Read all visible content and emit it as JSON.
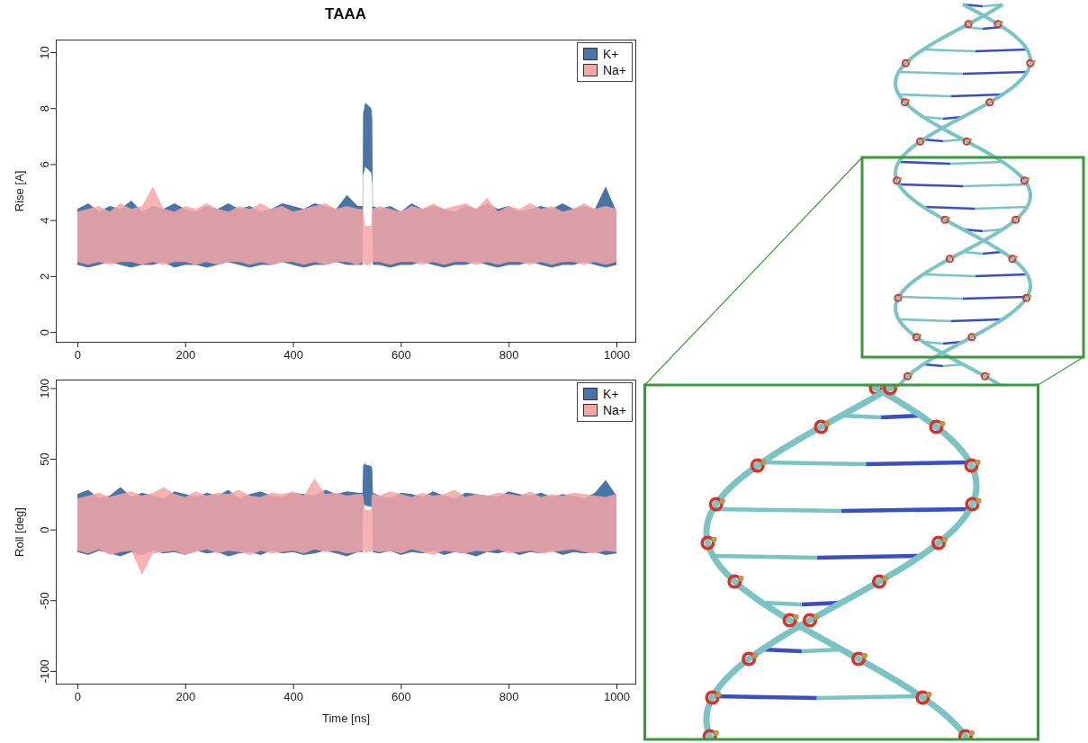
{
  "chart_data": [
    {
      "type": "area",
      "title": "TAAA",
      "ylabel": "Rise [A]",
      "x": [
        0,
        20,
        40,
        60,
        80,
        100,
        120,
        140,
        160,
        180,
        200,
        220,
        240,
        260,
        280,
        300,
        320,
        340,
        360,
        380,
        400,
        420,
        440,
        460,
        480,
        500,
        520,
        529,
        530,
        533,
        534,
        545,
        546,
        547,
        548,
        560,
        580,
        600,
        620,
        640,
        660,
        680,
        700,
        720,
        740,
        760,
        780,
        800,
        820,
        840,
        860,
        880,
        900,
        920,
        940,
        960,
        980,
        1000
      ],
      "series": [
        {
          "name": "K+",
          "color": "#4a73a6",
          "low": [
            2.4,
            2.3,
            2.4,
            2.5,
            2.4,
            2.3,
            2.4,
            2.4,
            2.5,
            2.3,
            2.4,
            2.4,
            2.3,
            2.4,
            2.5,
            2.4,
            2.3,
            2.4,
            2.4,
            2.5,
            2.4,
            2.3,
            2.4,
            2.4,
            2.5,
            2.4,
            2.4,
            2.4,
            5.6,
            5.8,
            5.9,
            5.7,
            5.5,
            5.3,
            2.4,
            2.4,
            2.3,
            2.4,
            2.4,
            2.5,
            2.4,
            2.3,
            2.4,
            2.4,
            2.5,
            2.4,
            2.3,
            2.4,
            2.4,
            2.5,
            2.4,
            2.3,
            2.4,
            2.4,
            2.5,
            2.4,
            2.3,
            2.4
          ],
          "high": [
            4.4,
            4.6,
            4.3,
            4.5,
            4.4,
            4.7,
            4.3,
            4.5,
            4.4,
            4.6,
            4.4,
            4.3,
            4.5,
            4.4,
            4.6,
            4.4,
            4.5,
            4.3,
            4.4,
            4.6,
            4.5,
            4.4,
            4.6,
            4.5,
            4.4,
            4.9,
            4.5,
            4.5,
            7.8,
            8.1,
            8.2,
            8.0,
            7.9,
            7.6,
            4.5,
            4.4,
            4.5,
            4.3,
            4.6,
            4.4,
            4.5,
            4.4,
            4.3,
            4.5,
            4.4,
            4.6,
            4.4,
            4.5,
            4.3,
            4.4,
            4.5,
            4.4,
            4.6,
            4.4,
            4.5,
            4.4,
            5.2,
            4.3
          ]
        },
        {
          "name": "Na+",
          "color": "#f6a6a6",
          "low": [
            2.5,
            2.4,
            2.5,
            2.4,
            2.5,
            2.5,
            2.4,
            2.5,
            2.4,
            2.5,
            2.5,
            2.4,
            2.5,
            2.4,
            2.5,
            2.5,
            2.4,
            2.5,
            2.4,
            2.5,
            2.5,
            2.4,
            2.5,
            2.4,
            2.5,
            2.5,
            2.4,
            2.5,
            2.5,
            2.4,
            2.4,
            2.4,
            2.5,
            2.5,
            2.5,
            2.5,
            2.4,
            2.5,
            2.5,
            2.4,
            2.5,
            2.4,
            2.5,
            2.5,
            2.4,
            2.5,
            2.4,
            2.5,
            2.5,
            2.4,
            2.5,
            2.4,
            2.5,
            2.5,
            2.4,
            2.5,
            2.4,
            2.5
          ],
          "high": [
            4.3,
            4.4,
            4.5,
            4.3,
            4.6,
            4.4,
            4.5,
            5.2,
            4.4,
            4.3,
            4.5,
            4.4,
            4.6,
            4.4,
            4.3,
            4.5,
            4.4,
            4.6,
            4.4,
            4.5,
            4.3,
            4.4,
            4.5,
            4.6,
            4.4,
            4.5,
            4.4,
            4.4,
            4.4,
            3.9,
            3.8,
            3.8,
            4.3,
            4.4,
            4.4,
            4.5,
            4.4,
            4.3,
            4.5,
            4.4,
            4.6,
            4.4,
            4.5,
            4.6,
            4.4,
            4.8,
            4.3,
            4.5,
            4.4,
            4.6,
            4.4,
            4.5,
            4.3,
            4.4,
            4.6,
            4.4,
            4.5,
            4.4
          ]
        }
      ],
      "xlim": [
        -40,
        1035
      ],
      "xticks": [
        0,
        200,
        400,
        600,
        800,
        1000
      ],
      "ylim": [
        -0.35,
        10.45
      ],
      "yticks": [
        0,
        2,
        4,
        6,
        8,
        10
      ],
      "legend": "top-right"
    },
    {
      "type": "area",
      "ylabel": "Roll [deg]",
      "xlabel": "Time [ns]",
      "x": [
        0,
        20,
        40,
        60,
        80,
        100,
        120,
        140,
        160,
        180,
        200,
        220,
        240,
        260,
        280,
        300,
        320,
        340,
        360,
        380,
        400,
        420,
        440,
        460,
        480,
        500,
        520,
        529,
        530,
        533,
        534,
        545,
        546,
        547,
        548,
        560,
        580,
        600,
        620,
        640,
        660,
        680,
        700,
        720,
        740,
        760,
        780,
        800,
        820,
        840,
        860,
        880,
        900,
        920,
        940,
        960,
        980,
        1000
      ],
      "series": [
        {
          "name": "K+",
          "color": "#4a73a6",
          "low": [
            -16,
            -18,
            -15,
            -17,
            -19,
            -16,
            -18,
            -15,
            -17,
            -16,
            -18,
            -15,
            -17,
            -16,
            -19,
            -17,
            -16,
            -18,
            -15,
            -17,
            -16,
            -18,
            -17,
            -15,
            -17,
            -19,
            -16,
            -16,
            15,
            18,
            17,
            16,
            16,
            15,
            -16,
            -17,
            -15,
            -18,
            -16,
            -17,
            -15,
            -18,
            -16,
            -17,
            -19,
            -16,
            -17,
            -15,
            -18,
            -16,
            -17,
            -15,
            -18,
            -16,
            -17,
            -16,
            -18,
            -17
          ],
          "high": [
            25,
            28,
            22,
            24,
            30,
            23,
            26,
            24,
            22,
            27,
            25,
            23,
            26,
            24,
            28,
            22,
            25,
            27,
            24,
            23,
            26,
            25,
            24,
            28,
            25,
            27,
            26,
            26,
            45,
            47,
            46,
            45,
            44,
            43,
            26,
            24,
            22,
            26,
            25,
            23,
            27,
            24,
            22,
            26,
            25,
            24,
            23,
            27,
            25,
            24,
            26,
            23,
            25,
            24,
            22,
            26,
            35,
            24
          ]
        },
        {
          "name": "Na+",
          "color": "#f6a6a6",
          "low": [
            -15,
            -17,
            -14,
            -18,
            -16,
            -15,
            -32,
            -17,
            -16,
            -15,
            -18,
            -16,
            -14,
            -17,
            -15,
            -16,
            -18,
            -15,
            -17,
            -16,
            -15,
            -17,
            -14,
            -16,
            -15,
            -17,
            -16,
            -15,
            -15,
            -17,
            -16,
            -16,
            -15,
            -15,
            -15,
            -16,
            -15,
            -17,
            -14,
            -16,
            -18,
            -15,
            -16,
            -17,
            -15,
            -16,
            -14,
            -17,
            -16,
            -15,
            -17,
            -16,
            -15,
            -14,
            -16,
            -17,
            -15,
            -16
          ],
          "high": [
            22,
            24,
            26,
            23,
            25,
            27,
            24,
            26,
            30,
            25,
            23,
            27,
            24,
            26,
            25,
            28,
            24,
            23,
            26,
            25,
            27,
            24,
            36,
            25,
            26,
            24,
            25,
            25,
            25,
            15,
            14,
            14,
            24,
            25,
            25,
            24,
            27,
            25,
            23,
            26,
            24,
            25,
            28,
            23,
            25,
            24,
            26,
            25,
            24,
            27,
            23,
            25,
            24,
            26,
            25,
            24,
            23,
            25
          ]
        }
      ],
      "xlim": [
        -40,
        1035
      ],
      "xticks": [
        0,
        200,
        400,
        600,
        800,
        1000
      ],
      "ylim": [
        -109,
        106
      ],
      "yticks": [
        -100,
        -50,
        0,
        50,
        100
      ],
      "legend": "top-right"
    }
  ]
}
